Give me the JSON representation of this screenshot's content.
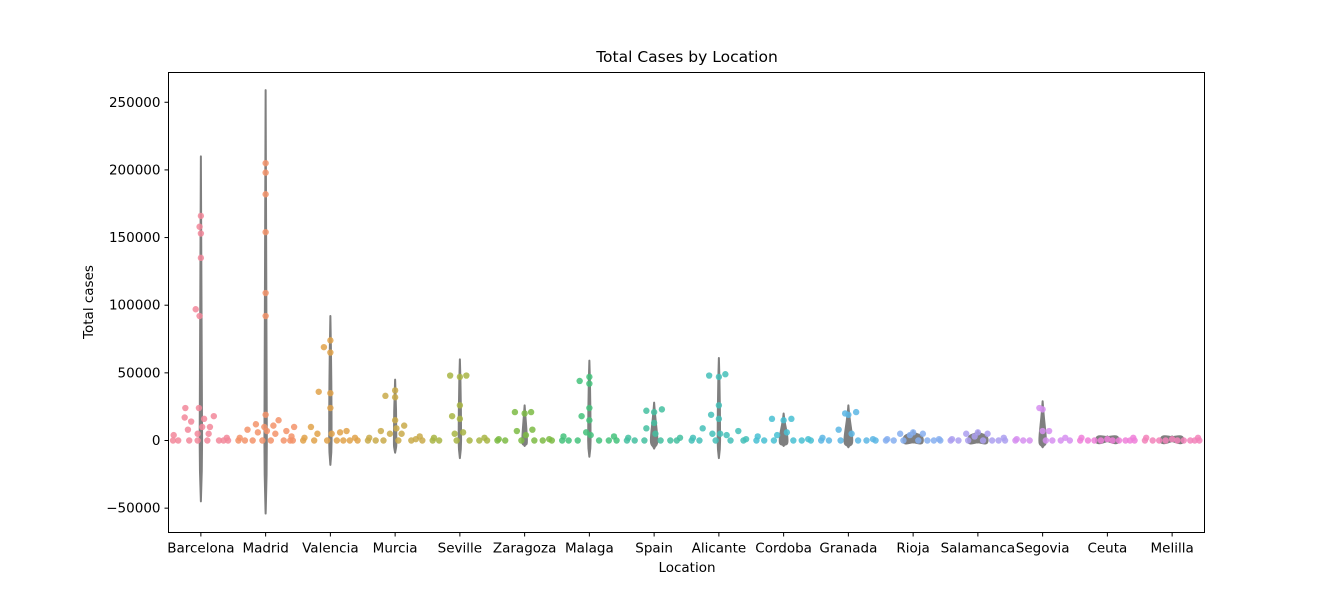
{
  "chart_data": {
    "type": "scatter",
    "subtype": "violin-with-strip",
    "title": "Total Cases by Location",
    "xlabel": "Location",
    "ylabel": "Total cases",
    "ylim": [
      -68000,
      272000
    ],
    "yticks": [
      -50000,
      0,
      50000,
      100000,
      150000,
      200000,
      250000
    ],
    "ytick_labels": [
      "−50000",
      "0",
      "50000",
      "100000",
      "150000",
      "200000",
      "250000"
    ],
    "grid": false,
    "legend": "none",
    "categories": [
      "Barcelona",
      "Madrid",
      "Valencia",
      "Murcia",
      "Seville",
      "Zaragoza",
      "Malaga",
      "Spain",
      "Alicante",
      "Cordoba",
      "Granada",
      "Rioja",
      "Salamanca",
      "Segovia",
      "Ceuta",
      "Melilla"
    ],
    "colors": [
      "#f2879a",
      "#f3936a",
      "#e0a24a",
      "#c9aa4a",
      "#a8b544",
      "#7cbb44",
      "#44c27b",
      "#44c0a0",
      "#44bfb8",
      "#48bfd2",
      "#5cb6e4",
      "#86aff0",
      "#ab9ff0",
      "#d68ff0",
      "#ef7fd9",
      "#f282ba"
    ],
    "violin_color": "#7f7f7f",
    "violins": [
      {
        "min": -45000,
        "max": 210000,
        "bulge": 0.0
      },
      {
        "min": -54000,
        "max": 259000,
        "bulge": 0.0
      },
      {
        "min": -18000,
        "max": 92000,
        "bulge": 0.0
      },
      {
        "min": -9000,
        "max": 45000,
        "bulge": 0.0
      },
      {
        "min": -13000,
        "max": 60000,
        "bulge": 0.0
      },
      {
        "min": -4000,
        "max": 26000,
        "bulge": 0.07
      },
      {
        "min": -12000,
        "max": 59000,
        "bulge": 0.0
      },
      {
        "min": -6000,
        "max": 28000,
        "bulge": 0.1
      },
      {
        "min": -13000,
        "max": 61000,
        "bulge": 0.0
      },
      {
        "min": -4000,
        "max": 20000,
        "bulge": 0.12
      },
      {
        "min": -5000,
        "max": 26000,
        "bulge": 0.12
      },
      {
        "min": -1500,
        "max": 7000,
        "bulge": 0.3
      },
      {
        "min": -1500,
        "max": 7000,
        "bulge": 0.3
      },
      {
        "min": -5000,
        "max": 29000,
        "bulge": 0.1
      },
      {
        "min": -500,
        "max": 3000,
        "bulge": 0.35
      },
      {
        "min": -500,
        "max": 3000,
        "bulge": 0.35
      }
    ],
    "series": [
      {
        "category": "Barcelona",
        "points": [
          [
            -0.43,
            0
          ],
          [
            -0.42,
            4000
          ],
          [
            -0.35,
            0
          ],
          [
            -0.25,
            17000
          ],
          [
            -0.2,
            8000
          ],
          [
            -0.18,
            0
          ],
          [
            -0.15,
            14000
          ],
          [
            -0.08,
            97000
          ],
          [
            -0.05,
            5000
          ],
          [
            -0.05,
            0
          ],
          [
            -0.03,
            24000
          ],
          [
            -0.02,
            92000
          ],
          [
            -0.02,
            158000
          ],
          [
            0.0,
            166000
          ],
          [
            0.0,
            153000
          ],
          [
            0.0,
            135000
          ],
          [
            0.02,
            10000
          ],
          [
            0.05,
            16000
          ],
          [
            0.1,
            0
          ],
          [
            0.12,
            5000
          ],
          [
            0.14,
            10000
          ],
          [
            0.2,
            18000
          ],
          [
            0.28,
            0
          ],
          [
            0.35,
            0
          ],
          [
            0.4,
            2000
          ],
          [
            0.42,
            0
          ],
          [
            -0.24,
            24000
          ]
        ]
      },
      {
        "category": "Madrid",
        "points": [
          [
            -0.42,
            0
          ],
          [
            -0.4,
            2000
          ],
          [
            -0.32,
            0
          ],
          [
            -0.28,
            8000
          ],
          [
            -0.2,
            0
          ],
          [
            -0.15,
            12000
          ],
          [
            -0.12,
            6000
          ],
          [
            -0.05,
            0
          ],
          [
            -0.02,
            10000
          ],
          [
            0.0,
            205000
          ],
          [
            0.0,
            198000
          ],
          [
            0.0,
            182000
          ],
          [
            0.0,
            154000
          ],
          [
            0.0,
            109000
          ],
          [
            0.0,
            92000
          ],
          [
            0.0,
            19000
          ],
          [
            0.02,
            7000
          ],
          [
            0.08,
            0
          ],
          [
            0.12,
            11000
          ],
          [
            0.15,
            5000
          ],
          [
            0.2,
            15000
          ],
          [
            0.28,
            0
          ],
          [
            0.32,
            7000
          ],
          [
            0.38,
            0
          ],
          [
            0.4,
            3000
          ],
          [
            0.42,
            0
          ],
          [
            0.44,
            10000
          ]
        ]
      },
      {
        "category": "Valencia",
        "points": [
          [
            -0.42,
            0
          ],
          [
            -0.4,
            2000
          ],
          [
            -0.3,
            10000
          ],
          [
            -0.25,
            0
          ],
          [
            -0.2,
            5000
          ],
          [
            -0.18,
            36000
          ],
          [
            -0.1,
            69000
          ],
          [
            -0.05,
            0
          ],
          [
            0.0,
            74000
          ],
          [
            0.0,
            65000
          ],
          [
            0.0,
            35000
          ],
          [
            0.0,
            24000
          ],
          [
            0.02,
            5000
          ],
          [
            0.1,
            0
          ],
          [
            0.15,
            6000
          ],
          [
            0.2,
            0
          ],
          [
            0.25,
            7000
          ],
          [
            0.3,
            0
          ],
          [
            0.38,
            2000
          ],
          [
            0.42,
            0
          ]
        ]
      },
      {
        "category": "Murcia",
        "points": [
          [
            -0.42,
            0
          ],
          [
            -0.4,
            2000
          ],
          [
            -0.3,
            0
          ],
          [
            -0.22,
            7000
          ],
          [
            -0.18,
            0
          ],
          [
            -0.15,
            33000
          ],
          [
            -0.08,
            5000
          ],
          [
            0.0,
            37000
          ],
          [
            0.0,
            32000
          ],
          [
            0.0,
            15000
          ],
          [
            0.02,
            9000
          ],
          [
            0.05,
            0
          ],
          [
            0.1,
            5000
          ],
          [
            0.14,
            11000
          ],
          [
            0.25,
            0
          ],
          [
            0.32,
            1000
          ],
          [
            0.38,
            3000
          ],
          [
            0.42,
            0
          ]
        ]
      },
      {
        "category": "Seville",
        "points": [
          [
            -0.42,
            0
          ],
          [
            -0.4,
            2000
          ],
          [
            -0.32,
            0
          ],
          [
            -0.15,
            48000
          ],
          [
            -0.12,
            18000
          ],
          [
            -0.08,
            5000
          ],
          [
            -0.05,
            0
          ],
          [
            0.0,
            47000
          ],
          [
            0.0,
            26000
          ],
          [
            0.0,
            16000
          ],
          [
            0.05,
            6000
          ],
          [
            0.1,
            48000
          ],
          [
            0.15,
            0
          ],
          [
            0.3,
            0
          ],
          [
            0.38,
            2000
          ],
          [
            0.42,
            0
          ]
        ]
      },
      {
        "category": "Zaragoza",
        "points": [
          [
            -0.42,
            0
          ],
          [
            -0.4,
            1000
          ],
          [
            -0.3,
            0
          ],
          [
            -0.15,
            21000
          ],
          [
            -0.12,
            7000
          ],
          [
            -0.05,
            0
          ],
          [
            0.0,
            20000
          ],
          [
            0.02,
            4000
          ],
          [
            0.1,
            21000
          ],
          [
            0.12,
            8000
          ],
          [
            0.15,
            0
          ],
          [
            0.28,
            0
          ],
          [
            0.38,
            1000
          ],
          [
            0.42,
            0
          ]
        ]
      },
      {
        "category": "Malaga",
        "points": [
          [
            -0.42,
            0
          ],
          [
            -0.4,
            3000
          ],
          [
            -0.32,
            0
          ],
          [
            -0.18,
            0
          ],
          [
            -0.15,
            44000
          ],
          [
            -0.12,
            18000
          ],
          [
            -0.05,
            6000
          ],
          [
            0.0,
            47000
          ],
          [
            0.0,
            42000
          ],
          [
            0.0,
            24000
          ],
          [
            0.0,
            15000
          ],
          [
            0.02,
            4000
          ],
          [
            0.15,
            0
          ],
          [
            0.3,
            0
          ],
          [
            0.38,
            3000
          ],
          [
            0.42,
            0
          ]
        ]
      },
      {
        "category": "Spain",
        "points": [
          [
            -0.42,
            0
          ],
          [
            -0.4,
            2000
          ],
          [
            -0.3,
            0
          ],
          [
            -0.15,
            0
          ],
          [
            -0.12,
            9000
          ],
          [
            -0.12,
            22000
          ],
          [
            0.0,
            21000
          ],
          [
            0.0,
            13000
          ],
          [
            0.02,
            5000
          ],
          [
            0.1,
            0
          ],
          [
            0.12,
            23000
          ],
          [
            0.25,
            0
          ],
          [
            0.35,
            0
          ],
          [
            0.4,
            2000
          ]
        ]
      },
      {
        "category": "Alicante",
        "points": [
          [
            -0.42,
            0
          ],
          [
            -0.4,
            2000
          ],
          [
            -0.3,
            0
          ],
          [
            -0.25,
            9000
          ],
          [
            -0.15,
            48000
          ],
          [
            -0.12,
            19000
          ],
          [
            -0.1,
            5000
          ],
          [
            -0.05,
            0
          ],
          [
            0.0,
            47000
          ],
          [
            0.0,
            26000
          ],
          [
            0.0,
            16000
          ],
          [
            0.02,
            5000
          ],
          [
            0.1,
            49000
          ],
          [
            0.12,
            4000
          ],
          [
            0.18,
            0
          ],
          [
            0.3,
            7000
          ],
          [
            0.38,
            0
          ],
          [
            0.42,
            1000
          ]
        ]
      },
      {
        "category": "Cordoba",
        "points": [
          [
            -0.42,
            0
          ],
          [
            -0.4,
            3000
          ],
          [
            -0.3,
            0
          ],
          [
            -0.18,
            16000
          ],
          [
            -0.15,
            0
          ],
          [
            -0.1,
            4000
          ],
          [
            0.0,
            15000
          ],
          [
            0.05,
            6000
          ],
          [
            0.12,
            16000
          ],
          [
            0.15,
            0
          ],
          [
            0.28,
            0
          ],
          [
            0.38,
            1000
          ],
          [
            0.42,
            0
          ]
        ]
      },
      {
        "category": "Granada",
        "points": [
          [
            -0.42,
            0
          ],
          [
            -0.4,
            2000
          ],
          [
            -0.3,
            0
          ],
          [
            -0.15,
            8000
          ],
          [
            -0.12,
            0
          ],
          [
            -0.05,
            20000
          ],
          [
            0.0,
            19000
          ],
          [
            0.05,
            5000
          ],
          [
            0.12,
            21000
          ],
          [
            0.15,
            0
          ],
          [
            0.28,
            0
          ],
          [
            0.38,
            1000
          ],
          [
            0.42,
            0
          ]
        ]
      },
      {
        "category": "Rioja",
        "points": [
          [
            -0.42,
            0
          ],
          [
            -0.4,
            1000
          ],
          [
            -0.3,
            0
          ],
          [
            -0.2,
            5000
          ],
          [
            -0.15,
            0
          ],
          [
            -0.05,
            4000
          ],
          [
            0.0,
            6000
          ],
          [
            0.08,
            0
          ],
          [
            0.15,
            5000
          ],
          [
            0.22,
            0
          ],
          [
            0.32,
            0
          ],
          [
            0.4,
            1000
          ],
          [
            0.42,
            0
          ]
        ]
      },
      {
        "category": "Salamanca",
        "points": [
          [
            -0.42,
            0
          ],
          [
            -0.4,
            1000
          ],
          [
            -0.3,
            0
          ],
          [
            -0.18,
            5000
          ],
          [
            -0.15,
            0
          ],
          [
            -0.05,
            3000
          ],
          [
            0.0,
            6000
          ],
          [
            0.08,
            0
          ],
          [
            0.15,
            5000
          ],
          [
            0.22,
            0
          ],
          [
            0.32,
            0
          ],
          [
            0.4,
            2000
          ],
          [
            0.42,
            0
          ]
        ]
      },
      {
        "category": "Segovia",
        "points": [
          [
            -0.42,
            0
          ],
          [
            -0.4,
            1000
          ],
          [
            -0.3,
            0
          ],
          [
            -0.2,
            0
          ],
          [
            -0.05,
            24000
          ],
          [
            0.0,
            23000
          ],
          [
            0.0,
            7000
          ],
          [
            0.05,
            0
          ],
          [
            0.1,
            7000
          ],
          [
            0.15,
            0
          ],
          [
            0.28,
            0
          ],
          [
            0.35,
            2000
          ],
          [
            0.42,
            0
          ]
        ]
      },
      {
        "category": "Ceuta",
        "points": [
          [
            -0.42,
            0
          ],
          [
            -0.4,
            2000
          ],
          [
            -0.3,
            0
          ],
          [
            -0.2,
            0
          ],
          [
            -0.1,
            0
          ],
          [
            0.0,
            1000
          ],
          [
            0.08,
            0
          ],
          [
            0.18,
            0
          ],
          [
            0.28,
            0
          ],
          [
            0.35,
            0
          ],
          [
            0.4,
            2000
          ],
          [
            0.42,
            0
          ]
        ]
      },
      {
        "category": "Melilla",
        "points": [
          [
            -0.42,
            0
          ],
          [
            -0.4,
            2000
          ],
          [
            -0.3,
            0
          ],
          [
            -0.2,
            0
          ],
          [
            -0.1,
            0
          ],
          [
            0.0,
            1000
          ],
          [
            0.08,
            0
          ],
          [
            0.18,
            0
          ],
          [
            0.28,
            0
          ],
          [
            0.35,
            0
          ],
          [
            0.4,
            2000
          ],
          [
            0.42,
            0
          ]
        ]
      }
    ]
  }
}
